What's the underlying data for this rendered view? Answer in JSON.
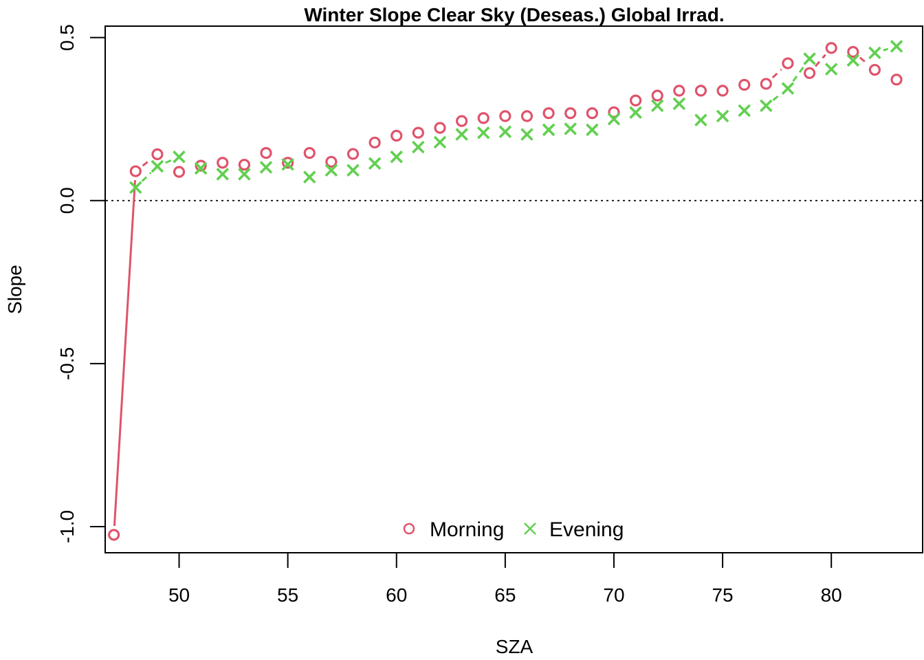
{
  "chart_data": {
    "type": "line",
    "title": "Winter Slope Clear Sky (Deseas.) Global Irrad.",
    "xlabel": "SZA",
    "ylabel": "Slope",
    "xlim": [
      46.6,
      84.2
    ],
    "ylim": [
      -1.08,
      0.535
    ],
    "xticks": [
      50,
      55,
      60,
      65,
      70,
      75,
      80
    ],
    "yticks": [
      -1.0,
      -0.5,
      0.0,
      0.5
    ],
    "xtick_labels": [
      "50",
      "55",
      "60",
      "65",
      "70",
      "75",
      "80"
    ],
    "ytick_labels": [
      "-1.0",
      "-0.5",
      "0.0",
      "0.5"
    ],
    "reference_line": {
      "y": 0,
      "style": "dotted"
    },
    "legend": {
      "position": "bottom-center",
      "orientation": "horizontal"
    },
    "series": [
      {
        "name": "Morning",
        "marker": "circle",
        "color": "#DF536B",
        "x": [
          47,
          48,
          49,
          50,
          51,
          52,
          53,
          54,
          55,
          56,
          57,
          58,
          59,
          60,
          61,
          62,
          63,
          64,
          65,
          66,
          67,
          68,
          69,
          70,
          71,
          72,
          73,
          74,
          75,
          76,
          77,
          78,
          79,
          80,
          81,
          82,
          83
        ],
        "values": [
          -1.025,
          0.09,
          0.142,
          0.088,
          0.107,
          0.116,
          0.11,
          0.146,
          0.116,
          0.146,
          0.119,
          0.143,
          0.178,
          0.199,
          0.208,
          0.223,
          0.244,
          0.253,
          0.259,
          0.259,
          0.268,
          0.268,
          0.268,
          0.271,
          0.307,
          0.322,
          0.337,
          0.337,
          0.337,
          0.355,
          0.358,
          0.421,
          0.391,
          0.468,
          0.456,
          0.401,
          0.371
        ],
        "segments": [
          [
            47,
            48,
            "solid"
          ],
          [
            48,
            49,
            "dashed"
          ],
          [
            77,
            78,
            "dashed"
          ],
          [
            79,
            80,
            "dashed"
          ],
          [
            81,
            82,
            "dashed"
          ]
        ]
      },
      {
        "name": "Evening",
        "marker": "x",
        "color": "#61D04F",
        "x": [
          48,
          49,
          50,
          51,
          52,
          53,
          54,
          55,
          56,
          57,
          58,
          59,
          60,
          61,
          62,
          63,
          64,
          65,
          66,
          67,
          68,
          69,
          70,
          71,
          72,
          73,
          74,
          75,
          76,
          77,
          78,
          79,
          80,
          81,
          82,
          83
        ],
        "values": [
          0.04,
          0.105,
          0.134,
          0.099,
          0.081,
          0.081,
          0.102,
          0.111,
          0.072,
          0.093,
          0.093,
          0.114,
          0.134,
          0.164,
          0.179,
          0.203,
          0.208,
          0.211,
          0.203,
          0.217,
          0.22,
          0.217,
          0.25,
          0.27,
          0.291,
          0.297,
          0.247,
          0.259,
          0.276,
          0.291,
          0.344,
          0.435,
          0.403,
          0.43,
          0.453,
          0.473
        ],
        "segments": [
          [
            48,
            49,
            "dashed"
          ],
          [
            49,
            50,
            "dashed"
          ],
          [
            77,
            78,
            "dashed"
          ],
          [
            78,
            79,
            "dashed"
          ],
          [
            82,
            83,
            "dashed"
          ]
        ]
      }
    ]
  }
}
